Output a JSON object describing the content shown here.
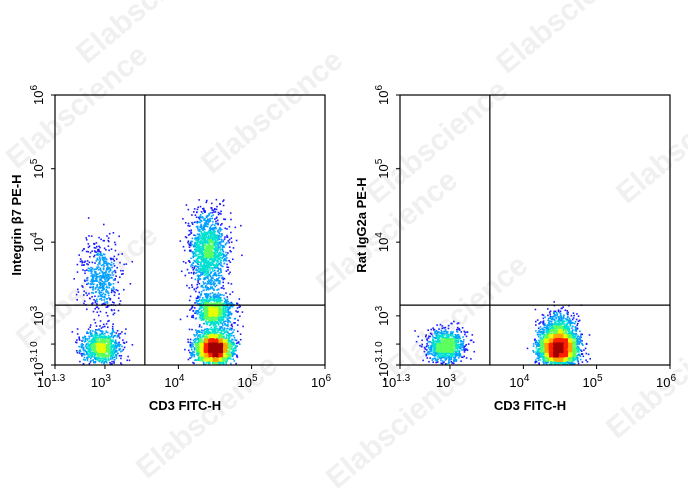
{
  "chart_data": [
    {
      "type": "scatter",
      "subtype": "flow-cytometry-density-dot-plot",
      "xlabel": "CD3 FITC-H",
      "ylabel": "Integrin β7 PE-H",
      "x_scale": "biexponential",
      "y_scale": "biexponential",
      "x_ticks": [
        {
          "base": "10",
          "exp": "1.3"
        },
        {
          "base": "10",
          "exp": "3"
        },
        {
          "base": "10",
          "exp": "4"
        },
        {
          "base": "10",
          "exp": "5"
        },
        {
          "base": "10",
          "exp": "6"
        }
      ],
      "y_ticks": [
        {
          "base": "-10",
          "exp": "3.1"
        },
        {
          "base": "",
          "exp": "0"
        },
        {
          "base": "10",
          "exp": "3"
        },
        {
          "base": "10",
          "exp": "4"
        },
        {
          "base": "10",
          "exp": "5"
        },
        {
          "base": "10",
          "exp": "6"
        }
      ],
      "quadrant_gate": {
        "x": 3500,
        "y": 1400
      },
      "populations": [
        {
          "x": 700,
          "y": -150,
          "count": 900
        },
        {
          "x": 700,
          "y": 3500,
          "count": 500
        },
        {
          "x": 30000,
          "y": -200,
          "count": 2200
        },
        {
          "x": 25000,
          "y": 8000,
          "count": 1300
        },
        {
          "x": 30000,
          "y": 1200,
          "count": 900
        }
      ]
    },
    {
      "type": "scatter",
      "subtype": "flow-cytometry-density-dot-plot",
      "xlabel": "CD3 FITC-H",
      "ylabel": "Rat IgG2a PE-H",
      "x_scale": "biexponential",
      "y_scale": "biexponential",
      "x_ticks": [
        {
          "base": "10",
          "exp": "1.3"
        },
        {
          "base": "10",
          "exp": "3"
        },
        {
          "base": "10",
          "exp": "4"
        },
        {
          "base": "10",
          "exp": "5"
        },
        {
          "base": "10",
          "exp": "6"
        }
      ],
      "y_ticks": [
        {
          "base": "-10",
          "exp": "3.1"
        },
        {
          "base": "",
          "exp": "0"
        },
        {
          "base": "10",
          "exp": "3"
        },
        {
          "base": "10",
          "exp": "4"
        },
        {
          "base": "10",
          "exp": "5"
        },
        {
          "base": "10",
          "exp": "6"
        }
      ],
      "quadrant_gate": {
        "x": 3500,
        "y": 1400
      },
      "populations": [
        {
          "x": 700,
          "y": -100,
          "count": 900
        },
        {
          "x": 30000,
          "y": -200,
          "count": 2800
        },
        {
          "x": 30000,
          "y": 600,
          "count": 500
        }
      ]
    }
  ],
  "watermark": "Elabscience",
  "colors": {
    "axis": "#000000",
    "gate": "#000000",
    "density_scale": [
      "#1a1aff",
      "#00a0ff",
      "#00e0d0",
      "#5cff5c",
      "#e8ff00",
      "#ffa500",
      "#ff2000",
      "#a00000"
    ]
  }
}
